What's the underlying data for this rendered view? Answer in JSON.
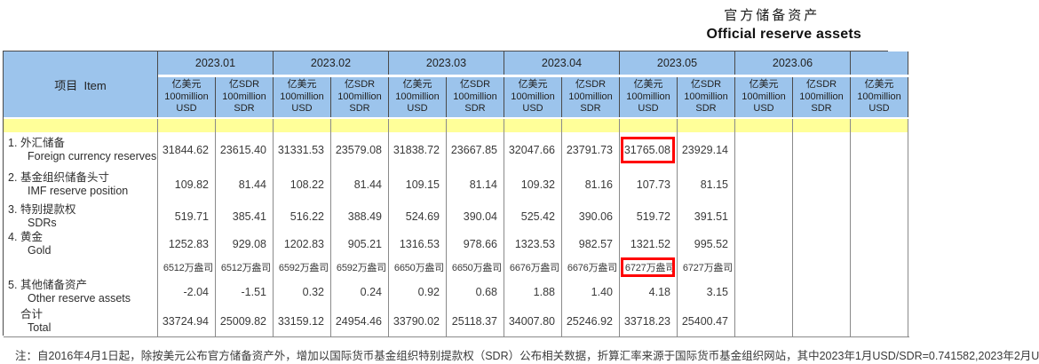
{
  "title": {
    "zh": "官方储备资产",
    "en": "Official reserve assets"
  },
  "table": {
    "item_header": "项目  Item",
    "months": [
      "2023.01",
      "2023.02",
      "2023.03",
      "2023.04",
      "2023.05",
      "2023.06"
    ],
    "unit_usd": [
      "亿美元",
      "100million",
      "USD"
    ],
    "unit_sdr": [
      "亿SDR",
      "100million",
      "SDR"
    ],
    "partial_unit": [
      "亿美元",
      "100million",
      "USD"
    ],
    "rows": [
      {
        "no": "1.",
        "zh": "外汇储备",
        "en": "Foreign currency reserves",
        "highlight": 8,
        "values": [
          "31844.62",
          "23615.40",
          "31331.53",
          "23579.08",
          "31838.72",
          "23667.85",
          "32047.66",
          "23791.73",
          "31765.08",
          "23929.14",
          "",
          "",
          ""
        ]
      },
      {
        "no": "2.",
        "zh": "基金组织储备头寸",
        "en": "IMF reserve position",
        "values": [
          "109.82",
          "81.44",
          "108.22",
          "81.44",
          "109.15",
          "81.14",
          "109.32",
          "81.16",
          "107.73",
          "81.15",
          "",
          "",
          ""
        ]
      },
      {
        "no": "3.",
        "zh": "特别提款权",
        "en": "SDRs",
        "values": [
          "519.71",
          "385.41",
          "516.22",
          "388.49",
          "524.69",
          "390.04",
          "525.42",
          "390.06",
          "519.72",
          "391.51",
          "",
          "",
          ""
        ]
      },
      {
        "no": "4.",
        "zh": "黄金",
        "en": "Gold",
        "values": [
          "1252.83",
          "929.08",
          "1202.83",
          "905.21",
          "1316.53",
          "978.66",
          "1323.53",
          "982.57",
          "1321.52",
          "995.52",
          "",
          "",
          ""
        ]
      },
      {
        "no": "",
        "zh": "",
        "en": "",
        "type": "sub",
        "highlight": 8,
        "values": [
          "6512万盎司",
          "6512万盎司",
          "6592万盎司",
          "6592万盎司",
          "6650万盎司",
          "6650万盎司",
          "6676万盎司",
          "6676万盎司",
          "6727万盎司",
          "6727万盎司",
          "",
          "",
          ""
        ]
      },
      {
        "no": "5.",
        "zh": "其他储备资产",
        "en": "Other reserve assets",
        "values": [
          "-2.04",
          "-1.51",
          "0.32",
          "0.24",
          "0.92",
          "0.68",
          "1.88",
          "1.40",
          "4.18",
          "3.15",
          "",
          "",
          ""
        ]
      },
      {
        "no": "",
        "zh": "合计",
        "en": "Total",
        "type": "total",
        "values": [
          "33724.94",
          "25009.82",
          "33159.12",
          "24954.46",
          "33790.02",
          "25118.37",
          "34007.80",
          "25246.92",
          "33718.23",
          "25400.47",
          "",
          "",
          ""
        ]
      }
    ]
  },
  "note": "注：自2016年4月1日起，除按美元公布官方储备资产外，增加以国际货币基金组织特别提款权（SDR）公布相关数据，折算汇率来源于国际货币基金组织网站，其中2023年1月USD/SDR=0.741582,2023年2月U",
  "colors": {
    "header_bg": "#9CC4EC",
    "band_bg": "#FFFF99",
    "highlight": "#FF0000"
  }
}
